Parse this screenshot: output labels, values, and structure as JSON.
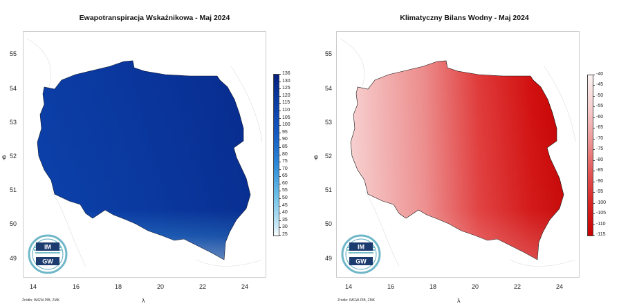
{
  "maps": [
    {
      "title": "Ewapotranspiracja Wskaźnikowa - Maj 2024",
      "ylabel": "φ",
      "xlabel": "λ",
      "source": "Źródło: IMGW-PIB, ZMK",
      "x_ticks": [
        "14",
        "16",
        "18",
        "20",
        "22",
        "24"
      ],
      "y_ticks": [
        "55",
        "54",
        "53",
        "52",
        "51",
        "50",
        "49"
      ],
      "legend": [
        "136",
        "130",
        "125",
        "120",
        "115",
        "110",
        "105",
        "100",
        "95",
        "90",
        "85",
        "80",
        "75",
        "70",
        "65",
        "60",
        "55",
        "50",
        "45",
        "40",
        "35",
        "30",
        "25"
      ],
      "logo": "IMGW",
      "color_low": "#e6f4fb",
      "color_high": "#072b8a"
    },
    {
      "title": "Klimatyczny Bilans Wodny - Maj 2024",
      "ylabel": "φ",
      "xlabel": "λ",
      "source": "Źródło: IMGW-PIB, ZMK",
      "x_ticks": [
        "14",
        "16",
        "18",
        "20",
        "22",
        "24"
      ],
      "y_ticks": [
        "55",
        "54",
        "53",
        "52",
        "51",
        "50",
        "49"
      ],
      "legend": [
        "-40",
        "-45",
        "-50",
        "-55",
        "-60",
        "-65",
        "-70",
        "-75",
        "-80",
        "-85",
        "-90",
        "-95",
        "-100",
        "-105",
        "-110",
        "-115"
      ],
      "logo": "IMGW",
      "color_low": "#c80000",
      "color_high": "#fbe9e9"
    }
  ]
}
